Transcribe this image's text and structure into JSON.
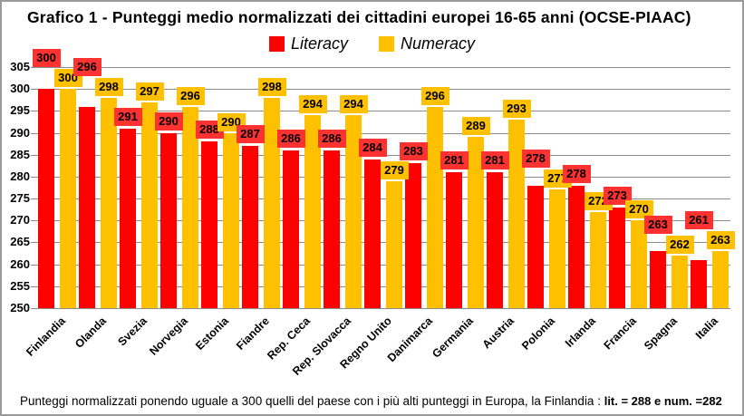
{
  "title": "Grafico 1 - Punteggi medio normalizzati dei cittadini europei 16-65 anni  (OCSE-PIAAC)",
  "footer": {
    "normal": "Punteggi normalizzati ponendo uguale a 300 quelli del paese con i più alti punteggi in Europa, la Finlandia :  ",
    "bold": "lit. = 288 e  num. =282"
  },
  "theme": {
    "literacy_bar_color": "#FE0000",
    "literacy_label_bg": "#FF3232",
    "numeracy_bar_color": "#FFC000",
    "numeracy_label_bg": "#FFC000",
    "grid_color": "#8C8C8C",
    "frame_border_color": "#9A9A9A",
    "text_color": "#000000"
  },
  "y_axis": {
    "ticks": [
      305,
      300,
      295,
      290,
      285,
      280,
      275,
      270,
      265,
      260,
      255,
      250
    ]
  },
  "chart_data": {
    "type": "bar",
    "title": "Grafico 1 - Punteggi medio normalizzati dei cittadini europei 16-65 anni  (OCSE-PIAAC)",
    "categories": [
      "Finlandia",
      "Olanda",
      "Svezia",
      "Norvegia",
      "Estonia",
      "Fiandre",
      "Rep. Ceca",
      "Rep. Slovacca",
      "Regno Unito",
      "Danimarca",
      "Germania",
      "Austria",
      "Polonia",
      "Irlanda",
      "Francia",
      "Spagna",
      "Italia"
    ],
    "series": [
      {
        "name": "Literacy",
        "values": [
          300,
          296,
          291,
          290,
          288,
          287,
          286,
          286,
          284,
          283,
          281,
          281,
          278,
          278,
          273,
          263,
          261
        ]
      },
      {
        "name": "Numeracy",
        "values": [
          300,
          298,
          297,
          296,
          290,
          298,
          294,
          294,
          279,
          296,
          289,
          293,
          277,
          272,
          270,
          262,
          263
        ]
      }
    ],
    "ylim": [
      250,
      305
    ],
    "ytick_step": 5,
    "grid": true,
    "legend_position": "top-center",
    "data_labels": true,
    "xlabel": "",
    "ylabel": ""
  }
}
